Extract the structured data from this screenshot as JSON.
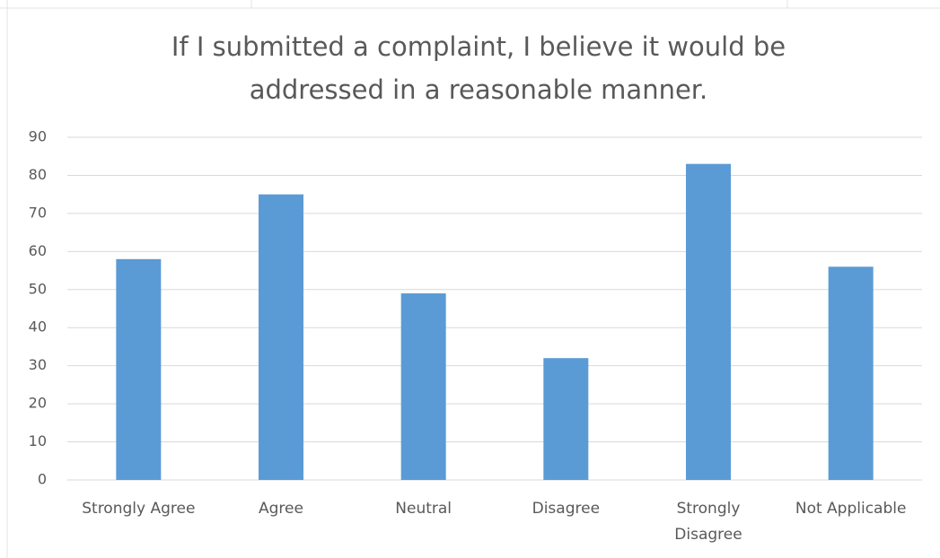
{
  "chart_data": {
    "type": "bar",
    "title": "If I submitted a complaint, I believe it would be addressed in a reasonable manner.",
    "categories": [
      "Strongly Agree",
      "Agree",
      "Neutral",
      "Disagree",
      "Strongly Disagree",
      "Not Applicable"
    ],
    "values": [
      58,
      75,
      49,
      32,
      83,
      56
    ],
    "color": "#5b9bd5",
    "ylim": [
      0,
      90
    ],
    "yticks": [
      0,
      10,
      20,
      30,
      40,
      50,
      60,
      70,
      80,
      90
    ],
    "grid": true
  }
}
